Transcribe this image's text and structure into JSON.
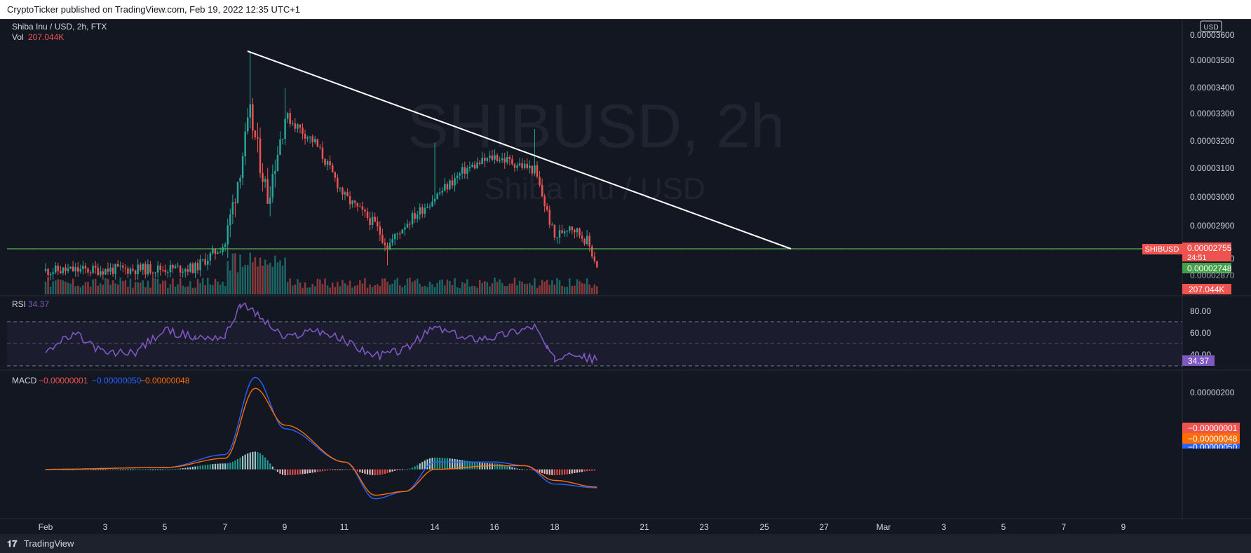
{
  "header": {
    "attribution": "CryptoTicker published on TradingView.com, Feb 19, 2022 12:35 UTC+1"
  },
  "footer": {
    "logo_glyph": "𝟏𝟕",
    "brand": "TradingView"
  },
  "legend": {
    "symbol": "Shiba Inu / USD, 2h, FTX",
    "vol_label": "Vol",
    "vol_value": "207.044K",
    "rsi_label": "RSI",
    "rsi_value": "34.37",
    "macd_label": "MACD",
    "macd_values": [
      "−0.00000001",
      "−0.00000050",
      "−0.00000048"
    ]
  },
  "watermark": {
    "ticker": "SHIBUSD, 2h",
    "name": "Shiba Inu / USD"
  },
  "currency_badge": "USD",
  "price_axis": {
    "ticks": [
      "0.00003600",
      "0.00003500",
      "0.00003400",
      "0.00003300",
      "0.00003200",
      "0.00003100",
      "0.00003000",
      "0.00002900",
      "0.00002820"
    ],
    "last_price": "0.00002755",
    "countdown": "24:51",
    "support_price": "0.00002748",
    "hidden_tick": "0.00002870",
    "symbol_tag": "SHIBUSD",
    "volume_tag": "207.044K"
  },
  "rsi_axis": {
    "ticks": [
      "80.00",
      "60.00",
      "40.00"
    ],
    "value_tag": "34.37"
  },
  "macd_axis": {
    "ticks": [
      "0.00000200"
    ],
    "value_tags": [
      "−0.00000001",
      "−0.00000048",
      "−0.00000050"
    ]
  },
  "time_axis": [
    "Feb",
    "3",
    "5",
    "7",
    "9",
    "11",
    "14",
    "16",
    "18",
    "21",
    "23",
    "25",
    "27",
    "Mar",
    "3",
    "5",
    "7",
    "9"
  ],
  "colors": {
    "up": "#26a69a",
    "down": "#ef5350",
    "trendline": "#ffffff",
    "support": "#4caf50",
    "rsi": "#7e57c2",
    "macd": "#2962ff",
    "signal": "#ff6d00",
    "background": "#131722"
  },
  "chart_data": [
    {
      "type": "candlestick",
      "title": "Shiba Inu / USD, 2h, FTX",
      "x_label": "Date (2022)",
      "y_label": "USD",
      "ylim": [
        2.7e-05,
        3.6e-05
      ],
      "key_points": [
        {
          "date": "Feb 1",
          "close": 2.73e-05
        },
        {
          "date": "Feb 6",
          "close": 2.74e-05
        },
        {
          "date": "Feb 7",
          "close": 2.83e-05
        },
        {
          "date": "Feb 7 20:00",
          "high": 3.53e-05,
          "close": 3.3e-05
        },
        {
          "date": "Feb 8 10:00",
          "close": 3e-05
        },
        {
          "date": "Feb 9",
          "high": 3.4e-05,
          "close": 3.3e-05
        },
        {
          "date": "Feb 10",
          "close": 3.2e-05
        },
        {
          "date": "Feb 11",
          "close": 3e-05
        },
        {
          "date": "Feb 12",
          "close": 2.9e-05
        },
        {
          "date": "Feb 12 10:00",
          "low": 2.75e-05,
          "close": 2.82e-05
        },
        {
          "date": "Feb 13",
          "close": 2.9e-05
        },
        {
          "date": "Feb 14",
          "high": 3.2e-05,
          "close": 3e-05
        },
        {
          "date": "Feb 15",
          "close": 3.1e-05
        },
        {
          "date": "Feb 16",
          "close": 3.15e-05
        },
        {
          "date": "Feb 17 08:00",
          "high": 3.25e-05,
          "close": 3.1e-05
        },
        {
          "date": "Feb 18",
          "close": 2.85e-05
        },
        {
          "date": "Feb 18 12:00",
          "close": 2.9e-05
        },
        {
          "date": "Feb 19 02:00",
          "close": 2.84e-05
        },
        {
          "date": "Feb 19 10:00",
          "close": 2.75e-05
        }
      ],
      "trendline": {
        "from": {
          "date": "Feb 7 20:00",
          "price": 3.53e-05
        },
        "to": {
          "date": "Feb 26",
          "price": 2.75e-05
        }
      },
      "support_line": 2.75e-05,
      "volume_last": "207.044K"
    },
    {
      "type": "line",
      "title": "RSI",
      "ylim": [
        25,
        90
      ],
      "bands": [
        30,
        50,
        70
      ],
      "series": [
        {
          "name": "RSI",
          "points": [
            {
              "date": "Feb 1",
              "value": 44
            },
            {
              "date": "Feb 2",
              "value": 58
            },
            {
              "date": "Feb 3",
              "value": 40
            },
            {
              "date": "Feb 4",
              "value": 42
            },
            {
              "date": "Feb 5",
              "value": 62
            },
            {
              "date": "Feb 6",
              "value": 55
            },
            {
              "date": "Feb 7",
              "value": 56
            },
            {
              "date": "Feb 7 12:00",
              "value": 86
            },
            {
              "date": "Feb 8",
              "value": 78
            },
            {
              "date": "Feb 9",
              "value": 54
            },
            {
              "date": "Feb 10",
              "value": 63
            },
            {
              "date": "Feb 11",
              "value": 52
            },
            {
              "date": "Feb 12",
              "value": 38
            },
            {
              "date": "Feb 13",
              "value": 44
            },
            {
              "date": "Feb 14",
              "value": 65
            },
            {
              "date": "Feb 15",
              "value": 54
            },
            {
              "date": "Feb 16",
              "value": 56
            },
            {
              "date": "Feb 17 08:00",
              "value": 66
            },
            {
              "date": "Feb 17 18:00",
              "value": 45
            },
            {
              "date": "Feb 18",
              "value": 34
            },
            {
              "date": "Feb 18 12:00",
              "value": 44
            },
            {
              "date": "Feb 19",
              "value": 37
            },
            {
              "date": "Feb 19 10:00",
              "value": 34.37
            }
          ]
        }
      ]
    },
    {
      "type": "line",
      "title": "MACD",
      "ylim": [
        -1.3e-06,
        2.6e-06
      ],
      "series": [
        {
          "name": "MACD",
          "points": [
            {
              "date": "Feb 1",
              "value": 0.0
            },
            {
              "date": "Feb 5",
              "value": 5e-08
            },
            {
              "date": "Feb 7",
              "value": 4e-07
            },
            {
              "date": "Feb 8",
              "value": 2.5e-06
            },
            {
              "date": "Feb 9",
              "value": 1.1e-06
            },
            {
              "date": "Feb 11",
              "value": 2e-07
            },
            {
              "date": "Feb 12",
              "value": -8e-07
            },
            {
              "date": "Feb 13",
              "value": -6e-07
            },
            {
              "date": "Feb 14",
              "value": 2e-07
            },
            {
              "date": "Feb 16",
              "value": 2e-07
            },
            {
              "date": "Feb 17",
              "value": 1e-07
            },
            {
              "date": "Feb 18",
              "value": -4e-07
            },
            {
              "date": "Feb 19 10:00",
              "value": -5e-07
            }
          ]
        },
        {
          "name": "Signal",
          "points": [
            {
              "date": "Feb 1",
              "value": 0.0
            },
            {
              "date": "Feb 5",
              "value": 5e-08
            },
            {
              "date": "Feb 7",
              "value": 3e-07
            },
            {
              "date": "Feb 8",
              "value": 2.2e-06
            },
            {
              "date": "Feb 9",
              "value": 1.2e-06
            },
            {
              "date": "Feb 11",
              "value": 2e-07
            },
            {
              "date": "Feb 12",
              "value": -7e-07
            },
            {
              "date": "Feb 13",
              "value": -6e-07
            },
            {
              "date": "Feb 14",
              "value": 0.0
            },
            {
              "date": "Feb 16",
              "value": 1e-07
            },
            {
              "date": "Feb 17",
              "value": 1e-07
            },
            {
              "date": "Feb 18",
              "value": -3e-07
            },
            {
              "date": "Feb 19 10:00",
              "value": -4.8e-07
            }
          ]
        },
        {
          "name": "Histogram",
          "last": -1e-08
        }
      ]
    }
  ]
}
